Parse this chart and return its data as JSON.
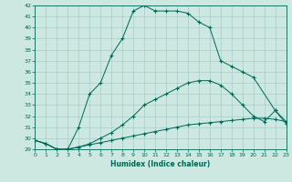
{
  "xlabel": "Humidex (Indice chaleur)",
  "ylabel": "",
  "bg_color": "#cce8e0",
  "grid_color": "#aacccc",
  "line_color": "#006655",
  "ylim": [
    29,
    42
  ],
  "xlim": [
    0,
    23
  ],
  "yticks": [
    29,
    30,
    31,
    32,
    33,
    34,
    35,
    36,
    37,
    38,
    39,
    40,
    41,
    42
  ],
  "xticks": [
    0,
    1,
    2,
    3,
    4,
    5,
    6,
    7,
    8,
    9,
    10,
    11,
    12,
    13,
    14,
    15,
    16,
    17,
    18,
    19,
    20,
    21,
    22,
    23
  ],
  "line1_x": [
    0,
    1,
    2,
    3,
    4,
    5,
    6,
    7,
    8,
    9,
    10,
    11,
    12,
    13,
    14,
    15,
    16,
    17,
    18,
    19,
    20,
    22,
    23
  ],
  "line1_y": [
    29.8,
    29.5,
    29.0,
    29.0,
    31.0,
    34.0,
    35.0,
    37.5,
    39.0,
    41.5,
    42.0,
    41.5,
    41.5,
    41.5,
    41.3,
    40.5,
    40.0,
    37.0,
    36.5,
    36.0,
    35.5,
    32.5,
    31.5
  ],
  "line2_x": [
    0,
    1,
    2,
    3,
    4,
    5,
    6,
    7,
    8,
    9,
    10,
    11,
    12,
    13,
    14,
    15,
    16,
    17,
    18,
    19,
    20,
    21,
    22,
    23
  ],
  "line2_y": [
    29.8,
    29.5,
    29.0,
    29.0,
    29.2,
    29.5,
    30.0,
    30.5,
    31.2,
    32.0,
    33.0,
    33.5,
    34.0,
    34.5,
    35.0,
    35.2,
    35.2,
    34.8,
    34.0,
    33.0,
    32.0,
    31.5,
    32.5,
    31.3
  ],
  "line3_x": [
    0,
    1,
    2,
    3,
    4,
    5,
    6,
    7,
    8,
    9,
    10,
    11,
    12,
    13,
    14,
    15,
    16,
    17,
    18,
    19,
    20,
    21,
    22,
    23
  ],
  "line3_y": [
    29.8,
    29.5,
    29.0,
    29.0,
    29.2,
    29.4,
    29.6,
    29.8,
    30.0,
    30.2,
    30.4,
    30.6,
    30.8,
    31.0,
    31.2,
    31.3,
    31.4,
    31.5,
    31.6,
    31.7,
    31.8,
    31.8,
    31.7,
    31.5
  ]
}
